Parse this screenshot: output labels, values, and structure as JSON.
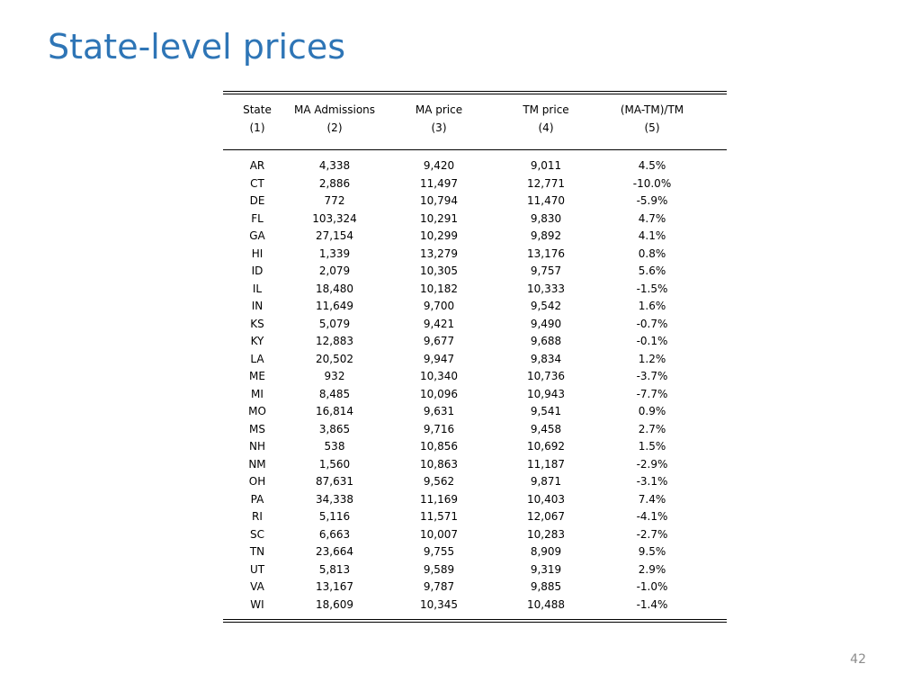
{
  "slide": {
    "title": "State-level prices",
    "page_number": "42"
  },
  "table": {
    "headers": [
      "State",
      "MA Admissions",
      "MA price",
      "TM price",
      "(MA-TM)/TM"
    ],
    "column_numbers": [
      "(1)",
      "(2)",
      "(3)",
      "(4)",
      "(5)"
    ],
    "rows": [
      [
        "AR",
        "4,338",
        "9,420",
        "9,011",
        "4.5%"
      ],
      [
        "CT",
        "2,886",
        "11,497",
        "12,771",
        "-10.0%"
      ],
      [
        "DE",
        "772",
        "10,794",
        "11,470",
        "-5.9%"
      ],
      [
        "FL",
        "103,324",
        "10,291",
        "9,830",
        "4.7%"
      ],
      [
        "GA",
        "27,154",
        "10,299",
        "9,892",
        "4.1%"
      ],
      [
        "HI",
        "1,339",
        "13,279",
        "13,176",
        "0.8%"
      ],
      [
        "ID",
        "2,079",
        "10,305",
        "9,757",
        "5.6%"
      ],
      [
        "IL",
        "18,480",
        "10,182",
        "10,333",
        "-1.5%"
      ],
      [
        "IN",
        "11,649",
        "9,700",
        "9,542",
        "1.6%"
      ],
      [
        "KS",
        "5,079",
        "9,421",
        "9,490",
        "-0.7%"
      ],
      [
        "KY",
        "12,883",
        "9,677",
        "9,688",
        "-0.1%"
      ],
      [
        "LA",
        "20,502",
        "9,947",
        "9,834",
        "1.2%"
      ],
      [
        "ME",
        "932",
        "10,340",
        "10,736",
        "-3.7%"
      ],
      [
        "MI",
        "8,485",
        "10,096",
        "10,943",
        "-7.7%"
      ],
      [
        "MO",
        "16,814",
        "9,631",
        "9,541",
        "0.9%"
      ],
      [
        "MS",
        "3,865",
        "9,716",
        "9,458",
        "2.7%"
      ],
      [
        "NH",
        "538",
        "10,856",
        "10,692",
        "1.5%"
      ],
      [
        "NM",
        "1,560",
        "10,863",
        "11,187",
        "-2.9%"
      ],
      [
        "OH",
        "87,631",
        "9,562",
        "9,871",
        "-3.1%"
      ],
      [
        "PA",
        "34,338",
        "11,169",
        "10,403",
        "7.4%"
      ],
      [
        "RI",
        "5,116",
        "11,571",
        "12,067",
        "-4.1%"
      ],
      [
        "SC",
        "6,663",
        "10,007",
        "10,283",
        "-2.7%"
      ],
      [
        "TN",
        "23,664",
        "9,755",
        "8,909",
        "9.5%"
      ],
      [
        "UT",
        "5,813",
        "9,589",
        "9,319",
        "2.9%"
      ],
      [
        "VA",
        "13,167",
        "9,787",
        "9,885",
        "-1.0%"
      ],
      [
        "WI",
        "18,609",
        "10,345",
        "10,488",
        "-1.4%"
      ]
    ]
  },
  "colors": {
    "title": "#2e75b6",
    "page_number": "#8c8c8c"
  }
}
